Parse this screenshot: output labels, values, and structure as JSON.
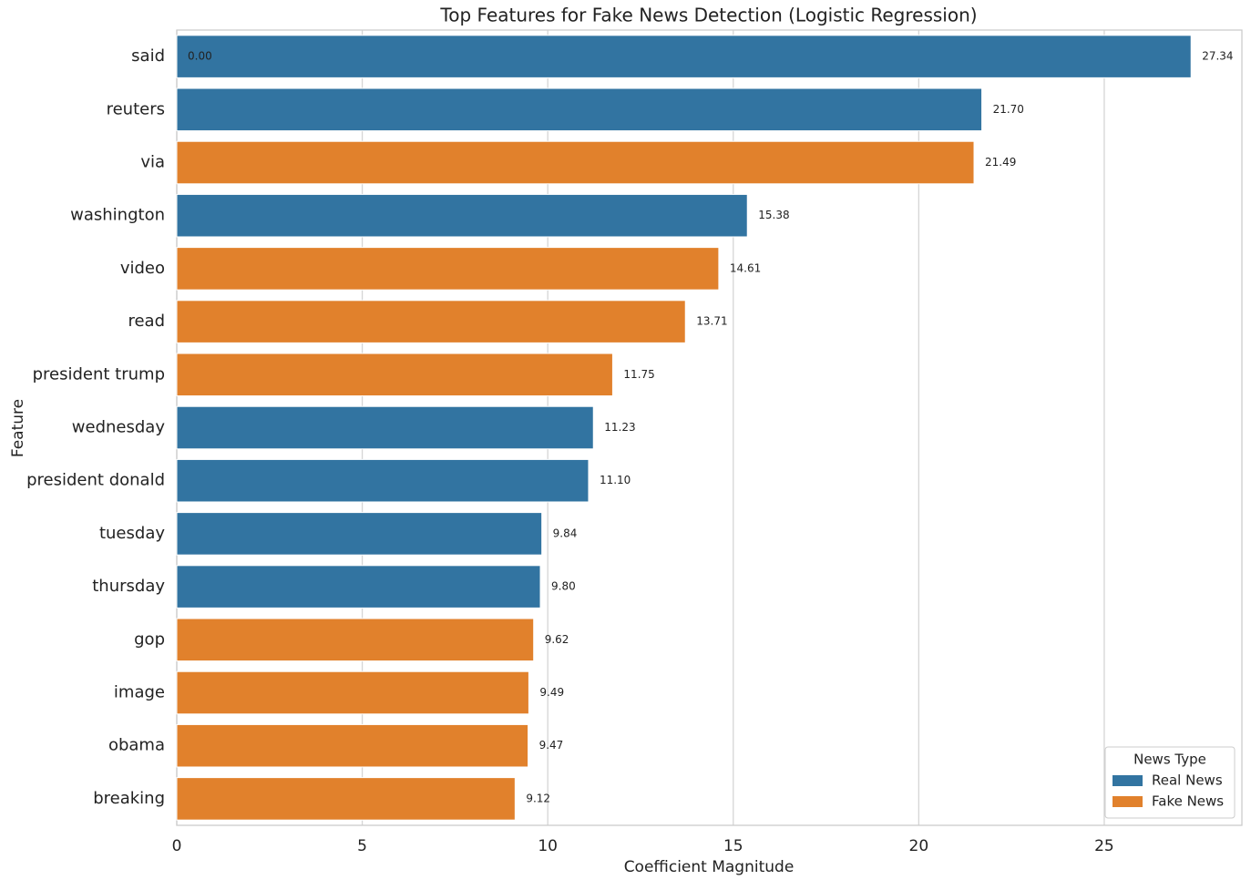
{
  "chart_data": {
    "type": "barh",
    "title": "Top Features for Fake News Detection (Logistic Regression)",
    "x_label": "Coefficient Magnitude",
    "y_label": "Feature",
    "categories": [
      "said",
      "reuters",
      "via",
      "washington",
      "video",
      "read",
      "president trump",
      "wednesday",
      "president donald",
      "tuesday",
      "thursday",
      "gop",
      "image",
      "obama",
      "breaking"
    ],
    "series": [
      {
        "name": "Real News",
        "color": "#3274a1",
        "values": [
          27.34,
          21.7,
          null,
          15.38,
          null,
          null,
          null,
          11.23,
          11.1,
          9.84,
          9.8,
          null,
          null,
          null,
          null
        ],
        "value_labels": [
          "27.34",
          "21.70",
          null,
          "15.38",
          null,
          null,
          null,
          "11.23",
          "11.10",
          "9.84",
          "9.80",
          null,
          null,
          null,
          null
        ]
      },
      {
        "name": "Fake News",
        "color": "#e1812c",
        "values": [
          0,
          null,
          21.49,
          null,
          14.61,
          13.71,
          11.75,
          null,
          null,
          null,
          null,
          9.62,
          9.49,
          9.47,
          9.12
        ],
        "value_labels": [
          "0.00",
          null,
          "21.49",
          null,
          "14.61",
          "13.71",
          "11.75",
          null,
          null,
          null,
          null,
          "9.62",
          "9.49",
          "9.47",
          "9.12"
        ]
      }
    ],
    "xlim": [
      0,
      28.71
    ],
    "xticks": [
      0,
      5,
      10,
      15,
      20,
      25
    ],
    "grid": true,
    "legend_title": "News Type",
    "legend_position": "lower right"
  }
}
